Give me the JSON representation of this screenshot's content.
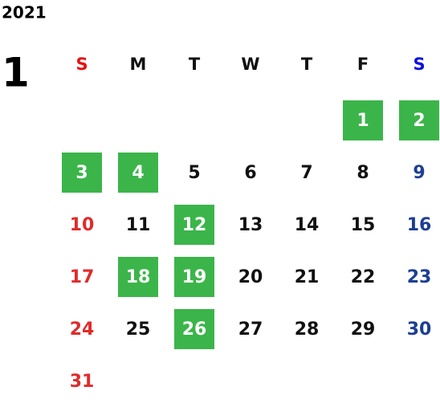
{
  "calendar": {
    "year": "2021",
    "month": "1",
    "weekdays": [
      "S",
      "M",
      "T",
      "W",
      "T",
      "F",
      "S"
    ],
    "weeks": [
      [
        null,
        null,
        null,
        null,
        null,
        1,
        2
      ],
      [
        3,
        4,
        5,
        6,
        7,
        8,
        9
      ],
      [
        10,
        11,
        12,
        13,
        14,
        15,
        16
      ],
      [
        17,
        18,
        19,
        20,
        21,
        22,
        23
      ],
      [
        24,
        25,
        26,
        27,
        28,
        29,
        30
      ],
      [
        31,
        null,
        null,
        null,
        null,
        null,
        null
      ]
    ],
    "highlighted_days": [
      1,
      2,
      3,
      4,
      12,
      18,
      19,
      26
    ],
    "highlight_color": "#3bb54a",
    "sunday_color": "#e02b2b",
    "saturday_color": "#1d3f94",
    "sunday_header_color": "#e81010",
    "saturday_header_color": "#1010e0",
    "weekday_color": "#111111"
  }
}
